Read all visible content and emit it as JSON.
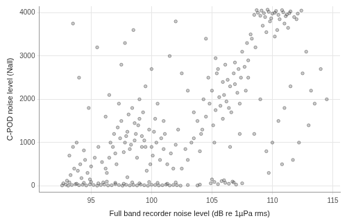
{
  "chart_data": {
    "type": "scatter",
    "x_label": "Full band recorder noise level (dB re 1µPa rms)",
    "y_label": "C-POD noise level (Nall)",
    "xlim": [
      90.7,
      115.6
    ],
    "xticks": [
      95,
      100,
      105,
      110,
      115
    ],
    "ylim": [
      -150,
      4150
    ],
    "yticks": [
      0,
      1000,
      2000,
      3000,
      4000
    ],
    "grid": true,
    "marker": "circle",
    "color": "#333333",
    "x": [
      92.6,
      92.9,
      93.1,
      93.4,
      93.7,
      94.0,
      94.3,
      94.6,
      94.9,
      95.2,
      95.5,
      95.8,
      96.1,
      96.4,
      96.7,
      97.0,
      97.3,
      97.6,
      97.9,
      98.2,
      98.5,
      98.8,
      99.1,
      99.4,
      99.7,
      100.0,
      100.3,
      100.6,
      100.9,
      101.2,
      101.5,
      101.8,
      102.1,
      102.4,
      93.0,
      93.3,
      93.6,
      94.2,
      94.5,
      96.0,
      93.2,
      93.5,
      93.9,
      94.1,
      94.4,
      94.7,
      95.0,
      95.3,
      93.8,
      94.9,
      96.2,
      96.5,
      96.8,
      97.1,
      97.4,
      97.7,
      98.0,
      98.3,
      98.6,
      98.9,
      99.2,
      99.5,
      99.8,
      100.1,
      100.4,
      100.7,
      101.0,
      101.3,
      97.5,
      98.1,
      98.4,
      98.7,
      99.0,
      99.3,
      97.2,
      96.9,
      96.3,
      95.9,
      95.6,
      100.2,
      101.6,
      102.0,
      102.5,
      103.0,
      103.5,
      104.0,
      99.6,
      98.0,
      97.8,
      99.9,
      104.5,
      104.8,
      105.0,
      105.3,
      105.6,
      105.9,
      106.2,
      106.5,
      106.8,
      107.1,
      107.4,
      107.7,
      105.1,
      105.4,
      105.7,
      106.0,
      106.3,
      106.6,
      104.2,
      103.8,
      104.9,
      105.2,
      105.5,
      105.8,
      106.1,
      106.4,
      106.7,
      107.0,
      105.0,
      106.0,
      108.5,
      108.8,
      109.1,
      109.4,
      109.7,
      110.0,
      110.3,
      110.6,
      110.9,
      111.2,
      111.5,
      111.8,
      112.1,
      112.4,
      109.2,
      109.8,
      110.4,
      111.0,
      108.2,
      107.9,
      107.5,
      108.0,
      108.3,
      108.6,
      107.2,
      106.9,
      109.5,
      110.2,
      111.3,
      112.0,
      94.0,
      95.5,
      96.5,
      97.5,
      98.5,
      99.5,
      100.5,
      101.5,
      102.5,
      103.5,
      104.5,
      103.0,
      102.0,
      101.0,
      100.0,
      99.0,
      93.5,
      94.8,
      96.2,
      97.8,
      108.5,
      109.5,
      110.5,
      111.5,
      112.5,
      113.5,
      114.5,
      113.0,
      112.8,
      110.8,
      108.0,
      109.0,
      110.0,
      111.0,
      112.2,
      113.2,
      114.0,
      109.7,
      111.7,
      107.3,
      96.6,
      97.0,
      97.9,
      98.2,
      98.8,
      99.4,
      100.0,
      100.8,
      101.8,
      102.8,
      97.3,
      98.6,
      99.2,
      100.3,
      101.1,
      102.2,
      103.3,
      104.1,
      105.2,
      106.5,
      108.7,
      109.0,
      109.3,
      109.6,
      109.9,
      110.2,
      110.5,
      110.8,
      111.1,
      111.4,
      92.7,
      93.2,
      93.8,
      94.4,
      95.0,
      95.6,
      96.3,
      97.0,
      97.7,
      98.4,
      99.0,
      99.8,
      100.5,
      101.3,
      102.0,
      103.0,
      104.0,
      106.8,
      107.5,
      103.8,
      104.3,
      104.7,
      105.5,
      106.1,
      106.9,
      107.3,
      107.8,
      105.9,
      106.4,
      105.3
    ],
    "values": [
      10,
      30,
      5,
      20,
      40,
      15,
      25,
      10,
      35,
      20,
      5,
      20,
      30,
      10,
      15,
      40,
      20,
      5,
      25,
      10,
      20,
      10,
      30,
      15,
      5,
      25,
      20,
      10,
      15,
      30,
      10,
      20,
      15,
      5,
      120,
      250,
      400,
      180,
      600,
      80,
      700,
      900,
      350,
      500,
      820,
      300,
      450,
      650,
      1000,
      150,
      400,
      650,
      900,
      500,
      1100,
      780,
      1250,
      950,
      1050,
      1400,
      1150,
      900,
      1300,
      700,
      1000,
      600,
      850,
      500,
      1500,
      1650,
      1800,
      1200,
      1550,
      1700,
      1350,
      1200,
      300,
      550,
      900,
      1250,
      750,
      950,
      400,
      600,
      1100,
      800,
      350,
      200,
      1000,
      500,
      1600,
      1900,
      2200,
      1750,
      2050,
      2400,
      1950,
      2300,
      2600,
      2150,
      2500,
      2750,
      1400,
      2600,
      1850,
      2100,
      2450,
      1700,
      1300,
      1500,
      60,
      90,
      40,
      110,
      70,
      50,
      100,
      30,
      150,
      130,
      3950,
      4000,
      4050,
      3900,
      4020,
      3980,
      4040,
      3850,
      4010,
      3960,
      4030,
      3900,
      3980,
      4050,
      3700,
      3800,
      3600,
      3750,
      3500,
      3300,
      3100,
      2900,
      3400,
      3200,
      2700,
      2850,
      3550,
      3450,
      3650,
      3850,
      2500,
      3200,
      2100,
      2800,
      3600,
      2300,
      1900,
      3000,
      2600,
      1700,
      3400,
      2200,
      3800,
      1500,
      2700,
      2000,
      3750,
      1800,
      1600,
      3300,
      1200,
      800,
      1500,
      2300,
      2600,
      1900,
      2000,
      1400,
      3100,
      500,
      2500,
      2000,
      1000,
      1800,
      1000,
      2200,
      2700,
      300,
      600,
      1200,
      1000,
      750,
      1150,
      850,
      650,
      1050,
      900,
      1100,
      400,
      850,
      1900,
      1450,
      900,
      1550,
      1200,
      1300,
      1000,
      1200,
      1000,
      900,
      4060,
      3930,
      3990,
      4070,
      3870,
      4000,
      3950,
      4060,
      3920,
      3990,
      60,
      80,
      50,
      70,
      90,
      60,
      100,
      70,
      50,
      80,
      60,
      90,
      70,
      50,
      80,
      20,
      30,
      80,
      60,
      10,
      2000,
      2500,
      2700,
      2800,
      2350,
      1900,
      2200,
      1550,
      1800,
      2950
    ]
  }
}
